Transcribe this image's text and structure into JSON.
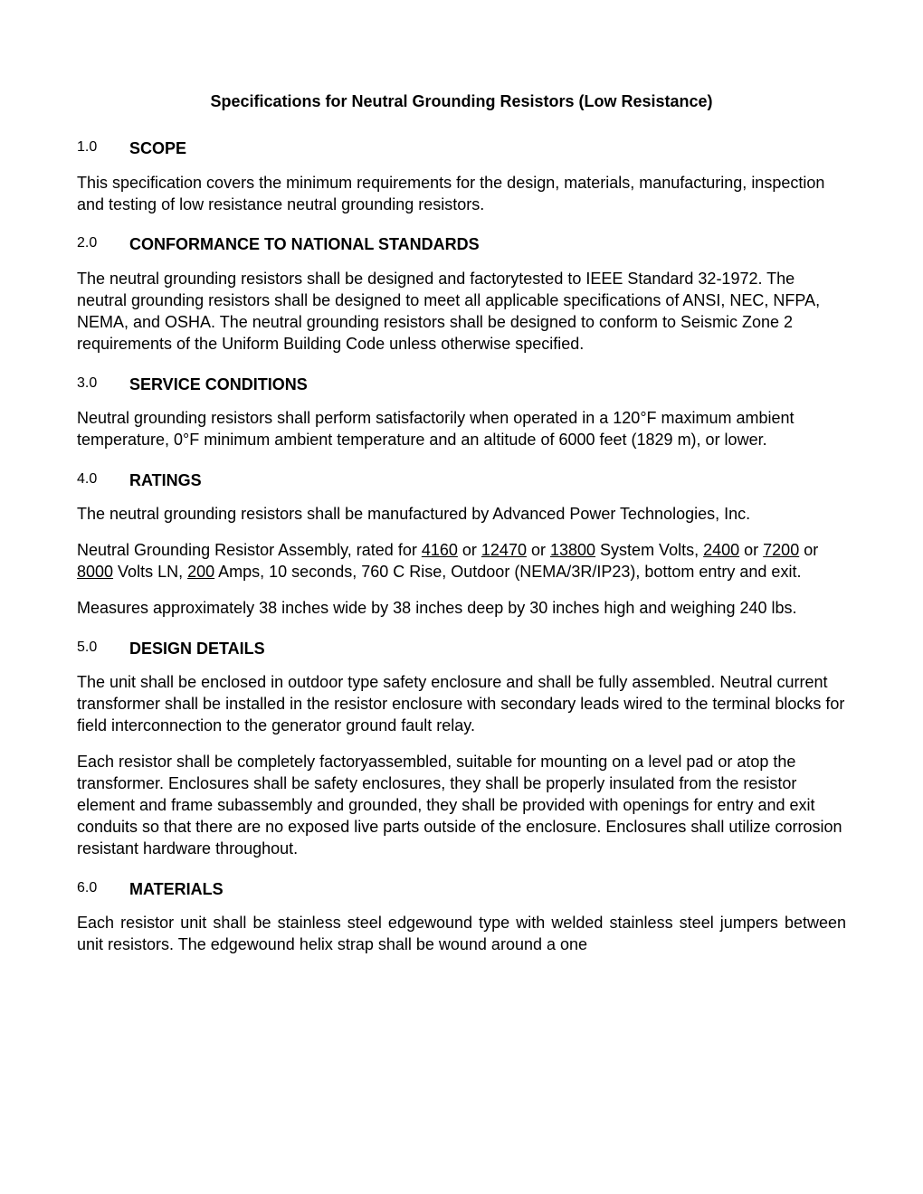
{
  "title": "Specifications for Neutral Grounding Resistors (Low Resistance)",
  "sections": {
    "s1": {
      "number": "1.0",
      "title": "SCOPE",
      "para1": "This specification covers the minimum requirements for the design, materials, manufacturing, inspection and testing of low resistance neutral grounding resistors."
    },
    "s2": {
      "number": "2.0",
      "title": "CONFORMANCE TO NATIONAL STANDARDS",
      "para1": "The neutral grounding resistors shall be designed and factorytested to IEEE Standard 32-1972. The neutral grounding resistors shall be designed to meet all applicable specifications of ANSI, NEC, NFPA, NEMA, and OSHA. The neutral grounding resistors shall be designed to conform to Seismic Zone 2 requirements of the Uniform Building Code unless otherwise specified."
    },
    "s3": {
      "number": "3.0",
      "title": "SERVICE CONDITIONS",
      "para1": "Neutral grounding resistors shall perform satisfactorily when operated in a 120°F maximum ambient temperature, 0°F minimum ambient temperature and an altitude of 6000 feet (1829 m), or lower."
    },
    "s4": {
      "number": "4.0",
      "title": "RATINGS",
      "para1": "The neutral grounding resistors shall be manufactured by Advanced Power Technologies, Inc.",
      "para2_part1": "Neutral Grounding Resistor Assembly, rated for ",
      "para2_u1": "4160",
      "para2_part2": " or ",
      "para2_u2": "12470",
      "para2_part3": " or ",
      "para2_u3": "13800",
      "para2_part4": " System Volts, ",
      "para2_u4": "2400",
      "para2_part5": " or ",
      "para2_u5": "7200",
      "para2_part6": " or ",
      "para2_u6": "8000",
      "para2_part7": " Volts LN, ",
      "para2_u7": "200",
      "para2_part8": " Amps, 10 seconds, 760 C Rise, Outdoor (NEMA/3R/IP23), bottom entry and exit.",
      "para3": "Measures approximately 38 inches wide by 38 inches deep by 30 inches high and weighing 240 lbs."
    },
    "s5": {
      "number": "5.0",
      "title": "DESIGN DETAILS",
      "para1": "The unit shall be enclosed in outdoor type safety enclosure and shall be fully assembled. Neutral current transformer shall be installed in the resistor enclosure with secondary leads wired to the terminal blocks for field interconnection to the generator ground fault relay.",
      "para2": "Each resistor shall be completely factoryassembled, suitable for mounting on a level pad or atop the transformer. Enclosures shall be safety enclosures, they shall be properly insulated from the resistor element and frame subassembly and grounded, they shall be provided with openings for entry and exit conduits so that there are no exposed live parts outside of the enclosure. Enclosures shall utilize corrosion resistant hardware throughout."
    },
    "s6": {
      "number": "6.0",
      "title": "MATERIALS",
      "para1": "Each resistor unit shall be stainless steel edgewound type with welded stainless steel jumpers between unit resistors. The edgewound helix strap shall be wound around a one"
    }
  }
}
